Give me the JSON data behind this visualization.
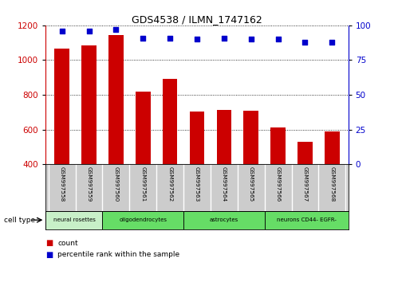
{
  "title": "GDS4538 / ILMN_1747162",
  "samples": [
    "GSM997558",
    "GSM997559",
    "GSM997560",
    "GSM997561",
    "GSM997562",
    "GSM997563",
    "GSM997564",
    "GSM997565",
    "GSM997566",
    "GSM997567",
    "GSM997568"
  ],
  "counts": [
    1065,
    1085,
    1145,
    820,
    890,
    705,
    712,
    708,
    610,
    530,
    590
  ],
  "percentile_ranks": [
    96,
    96,
    97,
    91,
    91,
    90,
    91,
    90,
    90,
    88,
    88
  ],
  "ylim_left": [
    400,
    1200
  ],
  "ylim_right": [
    0,
    100
  ],
  "yticks_left": [
    400,
    600,
    800,
    1000,
    1200
  ],
  "yticks_right": [
    0,
    25,
    50,
    75,
    100
  ],
  "cell_types": [
    {
      "label": "neural rosettes",
      "start": 0,
      "end": 2,
      "color": "#c8f0c8"
    },
    {
      "label": "oligodendrocytes",
      "start": 2,
      "end": 5,
      "color": "#66dd66"
    },
    {
      "label": "astrocytes",
      "start": 5,
      "end": 8,
      "color": "#66dd66"
    },
    {
      "label": "neurons CD44- EGFR-",
      "start": 8,
      "end": 11,
      "color": "#66dd66"
    }
  ],
  "bar_color": "#cc0000",
  "dot_color": "#0000cc",
  "bar_width": 0.55,
  "background_plot": "#ffffff",
  "sample_label_bg": "#cccccc",
  "legend_count_color": "#cc0000",
  "legend_pct_color": "#0000cc",
  "gridline_color": "#000000",
  "gridline_style": "dotted",
  "gridline_lw": 0.6
}
